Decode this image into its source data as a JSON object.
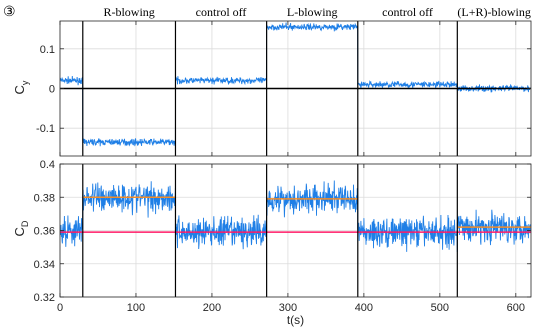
{
  "figure_label": "③",
  "chart_data": [
    {
      "type": "line",
      "ylabel": "C",
      "ylabel_sub": "y",
      "xlim": [
        0,
        620
      ],
      "ylim": [
        -0.17,
        0.17
      ],
      "yticks": [
        -0.1,
        0,
        0.1
      ],
      "ytick_labels": [
        "-0.1",
        "0",
        "0.1"
      ],
      "xticks": [
        0,
        100,
        200,
        300,
        400,
        500,
        600
      ],
      "xtick_labels": [
        "",
        "",
        "",
        "",
        "",
        "",
        ""
      ],
      "grid": true,
      "phase_boundaries": [
        30,
        152,
        272,
        392,
        523
      ],
      "phase_labels": [
        {
          "label": "R-blowing",
          "start": 30,
          "end": 152
        },
        {
          "label": "control off",
          "start": 152,
          "end": 272
        },
        {
          "label": "L-blowing",
          "start": 272,
          "end": 392
        },
        {
          "label": "control off",
          "start": 392,
          "end": 523
        },
        {
          "label": "(L+R)-blowing",
          "start": 523,
          "end": 620
        }
      ],
      "reference_lines": [
        {
          "name": "zero line",
          "y": 0,
          "x_start": 0,
          "x_end": 620,
          "color": "#000000"
        }
      ],
      "series": [
        {
          "color": "#1f7fe6",
          "noise": 0.008,
          "segments": [
            {
              "x_start": 0,
              "x_end": 30,
              "mean": 0.02
            },
            {
              "x_start": 30,
              "x_end": 152,
              "mean": -0.135
            },
            {
              "x_start": 152,
              "x_end": 272,
              "mean": 0.02
            },
            {
              "x_start": 272,
              "x_end": 392,
              "mean": 0.155
            },
            {
              "x_start": 392,
              "x_end": 523,
              "mean": 0.01
            },
            {
              "x_start": 523,
              "x_end": 620,
              "mean": 0.0
            }
          ]
        }
      ]
    },
    {
      "type": "line",
      "ylabel": "C",
      "ylabel_sub": "D",
      "xlabel": "t(s)",
      "xlim": [
        0,
        620
      ],
      "ylim": [
        0.32,
        0.4
      ],
      "yticks": [
        0.32,
        0.34,
        0.36,
        0.38,
        0.4
      ],
      "ytick_labels": [
        "0.32",
        "0.34",
        "0.36",
        "0.38",
        "0.4"
      ],
      "xticks": [
        0,
        100,
        200,
        300,
        400,
        500,
        600
      ],
      "xtick_labels": [
        "0",
        "100",
        "200",
        "300",
        "400",
        "500",
        "600"
      ],
      "grid": true,
      "phase_boundaries": [
        30,
        152,
        272,
        392,
        523
      ],
      "reference_lines": [
        {
          "name": "baseline mean",
          "y": 0.359,
          "x_start": 0,
          "x_end": 620,
          "color": "#ff1a66"
        },
        {
          "name": "R-blowing mean",
          "y": 0.38,
          "x_start": 30,
          "x_end": 152,
          "color": "#f28c28"
        },
        {
          "name": "L-blowing mean",
          "y": 0.379,
          "x_start": 272,
          "x_end": 392,
          "color": "#f28c28"
        },
        {
          "name": "(L+R)-blowing mean",
          "y": 0.362,
          "x_start": 523,
          "x_end": 620,
          "color": "#f28c28"
        }
      ],
      "series": [
        {
          "color": "#1f7fe6",
          "noise": 0.009,
          "segments": [
            {
              "x_start": 0,
              "x_end": 30,
              "mean": 0.36
            },
            {
              "x_start": 30,
              "x_end": 152,
              "mean": 0.38
            },
            {
              "x_start": 152,
              "x_end": 272,
              "mean": 0.359
            },
            {
              "x_start": 272,
              "x_end": 392,
              "mean": 0.379
            },
            {
              "x_start": 392,
              "x_end": 523,
              "mean": 0.359
            },
            {
              "x_start": 523,
              "x_end": 620,
              "mean": 0.362
            }
          ]
        }
      ]
    }
  ]
}
